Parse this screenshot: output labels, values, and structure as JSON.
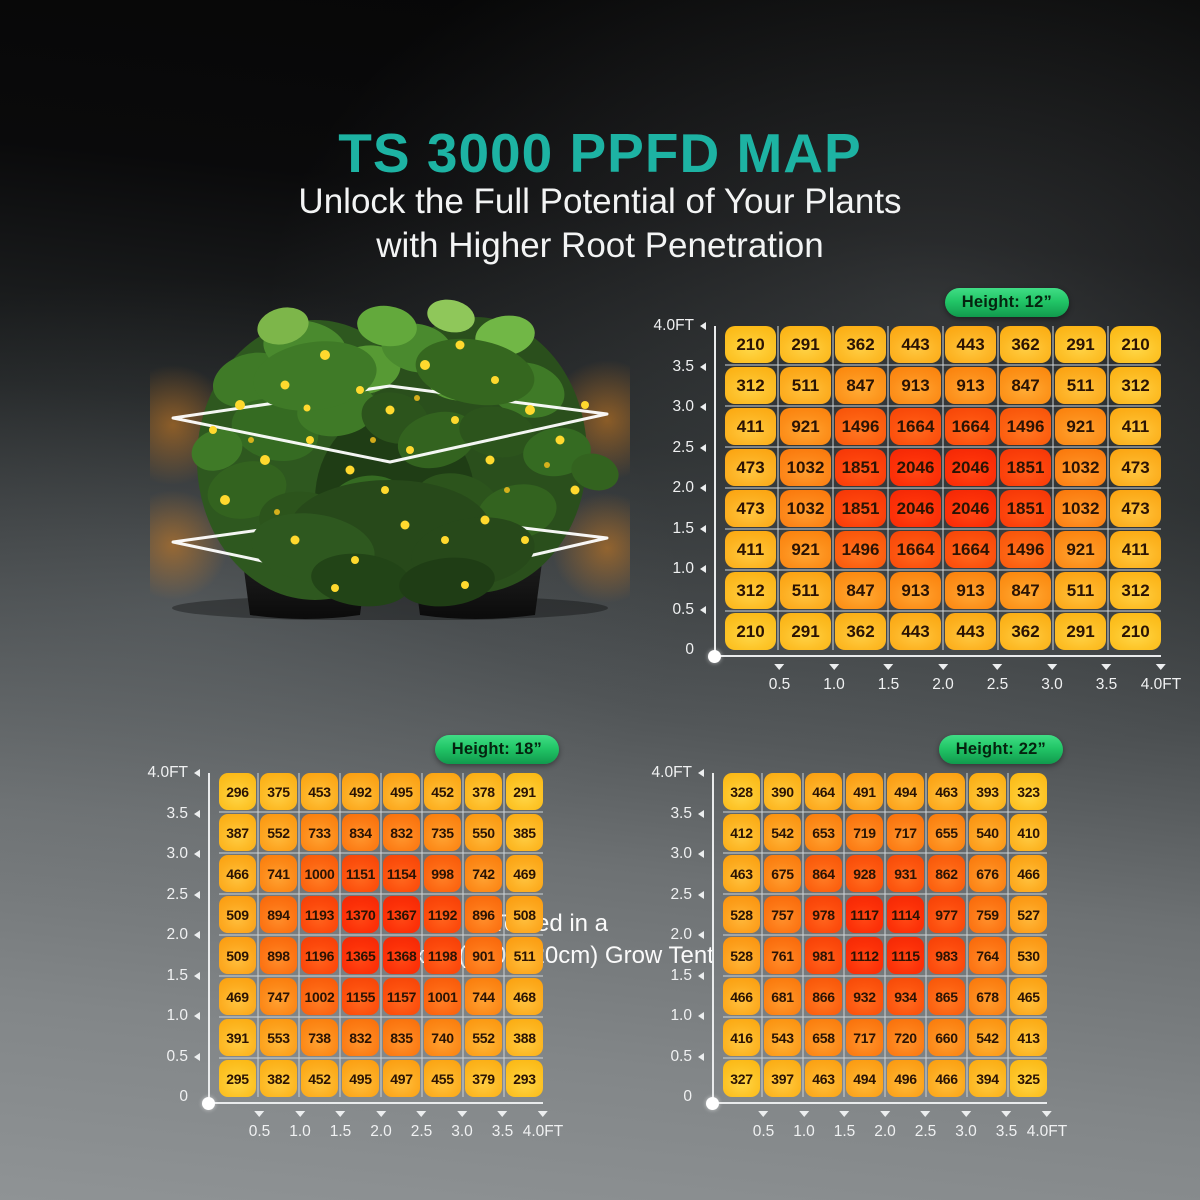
{
  "title": "TS 3000 PPFD MAP",
  "subtitle_line1": "Unlock the Full Potential of Your Plants",
  "subtitle_line2": "with Higher Root Penetration",
  "tent_caption_line1": "Tested in a",
  "tent_caption_line2": "4ftx4ft (120x120cm) Grow Tent",
  "colors": {
    "accent_teal": "#1DB3A3",
    "badge_green": "#22C667",
    "cell_text": "#2B1303",
    "axis_white": "#ECEEEF",
    "heat_low": "#F9A80C",
    "heat_high": "#EF2B08"
  },
  "axis": {
    "y_labels": [
      "4.0FT",
      "3.5",
      "3.0",
      "2.5",
      "2.0",
      "1.5",
      "1.0",
      "0.5",
      "0"
    ],
    "x_labels": [
      "0.5",
      "1.0",
      "1.5",
      "2.0",
      "2.5",
      "3.0",
      "3.5",
      "4.0FT"
    ]
  },
  "chart_data": [
    {
      "type": "heatmap",
      "title": "Height: 12”",
      "x_ft": [
        0.5,
        1.0,
        1.5,
        2.0,
        2.5,
        3.0,
        3.5,
        4.0
      ],
      "y_ft": [
        4.0,
        3.5,
        3.0,
        2.5,
        2.0,
        1.5,
        1.0,
        0.5
      ],
      "rows": [
        [
          210,
          291,
          362,
          443,
          443,
          362,
          291,
          210
        ],
        [
          312,
          511,
          847,
          913,
          913,
          847,
          511,
          312
        ],
        [
          411,
          921,
          1496,
          1664,
          1664,
          1496,
          921,
          411
        ],
        [
          473,
          1032,
          1851,
          2046,
          2046,
          1851,
          1032,
          473
        ],
        [
          473,
          1032,
          1851,
          2046,
          2046,
          1851,
          1032,
          473
        ],
        [
          411,
          921,
          1496,
          1664,
          1664,
          1496,
          921,
          411
        ],
        [
          312,
          511,
          847,
          913,
          913,
          847,
          511,
          312
        ],
        [
          210,
          291,
          362,
          443,
          443,
          362,
          291,
          210
        ]
      ]
    },
    {
      "type": "heatmap",
      "title": "Height: 18”",
      "x_ft": [
        0.5,
        1.0,
        1.5,
        2.0,
        2.5,
        3.0,
        3.5,
        4.0
      ],
      "y_ft": [
        4.0,
        3.5,
        3.0,
        2.5,
        2.0,
        1.5,
        1.0,
        0.5
      ],
      "rows": [
        [
          296,
          375,
          453,
          492,
          495,
          452,
          378,
          291
        ],
        [
          387,
          552,
          733,
          834,
          832,
          735,
          550,
          385
        ],
        [
          466,
          741,
          1000,
          1151,
          1154,
          998,
          742,
          469
        ],
        [
          509,
          894,
          1193,
          1370,
          1367,
          1192,
          896,
          508
        ],
        [
          509,
          898,
          1196,
          1365,
          1368,
          1198,
          901,
          511
        ],
        [
          469,
          747,
          1002,
          1155,
          1157,
          1001,
          744,
          468
        ],
        [
          391,
          553,
          738,
          832,
          835,
          740,
          552,
          388
        ],
        [
          295,
          382,
          452,
          495,
          497,
          455,
          379,
          293
        ]
      ]
    },
    {
      "type": "heatmap",
      "title": "Height: 22”",
      "x_ft": [
        0.5,
        1.0,
        1.5,
        2.0,
        2.5,
        3.0,
        3.5,
        4.0
      ],
      "y_ft": [
        4.0,
        3.5,
        3.0,
        2.5,
        2.0,
        1.5,
        1.0,
        0.5
      ],
      "rows": [
        [
          328,
          390,
          464,
          491,
          494,
          463,
          393,
          323
        ],
        [
          412,
          542,
          653,
          719,
          717,
          655,
          540,
          410
        ],
        [
          463,
          675,
          864,
          928,
          931,
          862,
          676,
          466
        ],
        [
          528,
          757,
          978,
          1117,
          1114,
          977,
          759,
          527
        ],
        [
          528,
          761,
          981,
          1112,
          1115,
          983,
          764,
          530
        ],
        [
          466,
          681,
          866,
          932,
          934,
          865,
          678,
          465
        ],
        [
          416,
          543,
          658,
          717,
          720,
          660,
          542,
          413
        ],
        [
          327,
          397,
          463,
          494,
          496,
          466,
          394,
          325
        ]
      ]
    }
  ]
}
